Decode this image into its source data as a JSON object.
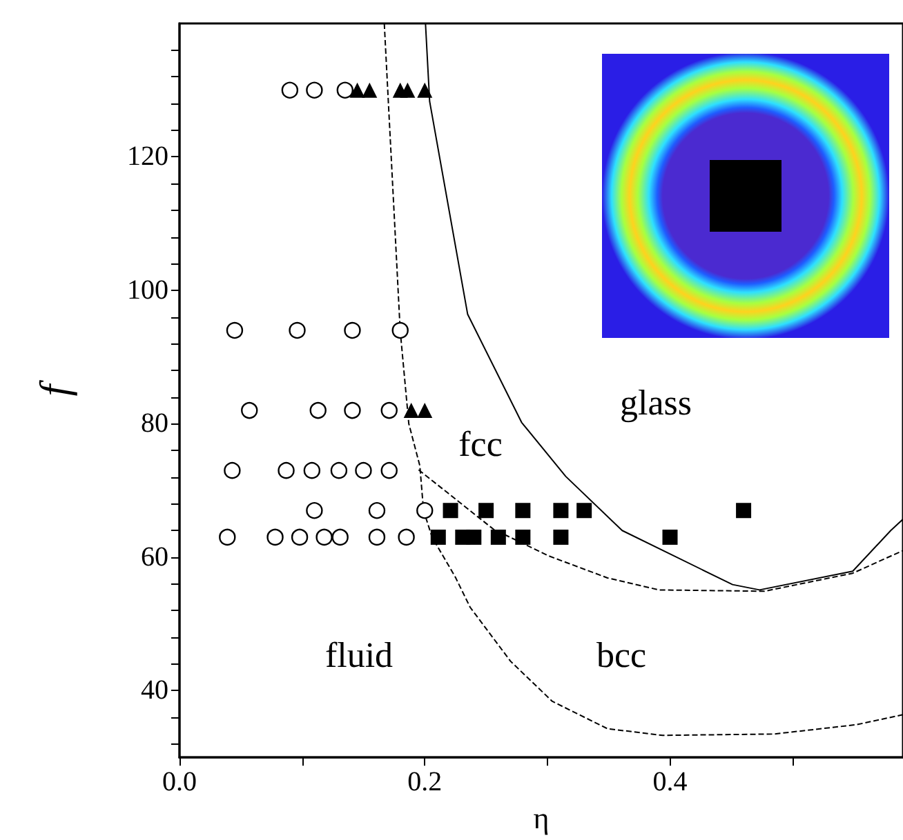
{
  "chart_data": {
    "type": "scatter",
    "xlabel": "η",
    "ylabel": "f",
    "xlim": [
      0,
      0.59
    ],
    "ylim": [
      30,
      140
    ],
    "xticks": [
      {
        "value": 0,
        "label": "0.0"
      },
      {
        "value": 0.1,
        "label": null
      },
      {
        "value": 0.2,
        "label": "0.2"
      },
      {
        "value": 0.3,
        "label": null
      },
      {
        "value": 0.4,
        "label": "0.4"
      },
      {
        "value": 0.5,
        "label": null
      }
    ],
    "yticks": [
      {
        "value": 32,
        "label": null
      },
      {
        "value": 36,
        "label": null
      },
      40,
      {
        "value": 44,
        "label": null
      },
      {
        "value": 48,
        "label": null
      },
      {
        "value": 52,
        "label": null
      },
      {
        "value": 56,
        "label": null
      },
      60,
      {
        "value": 64,
        "label": null
      },
      {
        "value": 68,
        "label": null
      },
      {
        "value": 72,
        "label": null
      },
      {
        "value": 76,
        "label": null
      },
      80,
      {
        "value": 84,
        "label": null
      },
      {
        "value": 88,
        "label": null
      },
      {
        "value": 92,
        "label": null
      },
      {
        "value": 96,
        "label": null
      },
      100,
      {
        "value": 104,
        "label": null
      },
      {
        "value": 108,
        "label": null
      },
      {
        "value": 112,
        "label": null
      },
      {
        "value": 116,
        "label": null
      },
      120,
      {
        "value": 124,
        "label": null
      },
      {
        "value": 128,
        "label": null
      },
      {
        "value": 132,
        "label": null
      },
      {
        "value": 136,
        "label": null
      }
    ],
    "grid": false,
    "series": [
      {
        "marker": "circle",
        "color": "#000000",
        "x": [
          0.09,
          0.11,
          0.135,
          0.045,
          0.096,
          0.141,
          0.18,
          0.057,
          0.113,
          0.141,
          0.171,
          0.043,
          0.087,
          0.108,
          0.13,
          0.15,
          0.171,
          0.11,
          0.161,
          0.2,
          0.039,
          0.078,
          0.098,
          0.118,
          0.131,
          0.161,
          0.185
        ],
        "values": [
          130,
          130,
          130,
          94,
          94,
          94,
          94,
          82,
          82,
          82,
          82,
          73,
          73,
          73,
          73,
          73,
          73,
          67,
          67,
          67,
          63,
          63,
          63,
          63,
          63,
          63,
          63
        ]
      },
      {
        "marker": "triangle",
        "color": "#000000",
        "x": [
          0.145,
          0.155,
          0.18,
          0.186,
          0.2,
          0.189,
          0.2
        ],
        "values": [
          130,
          130,
          130,
          130,
          130,
          82,
          82
        ]
      },
      {
        "marker": "square",
        "color": "#000000",
        "x": [
          0.221,
          0.25,
          0.28,
          0.311,
          0.33,
          0.46,
          0.211,
          0.231,
          0.24,
          0.26,
          0.28,
          0.311,
          0.4
        ],
        "values": [
          67,
          67,
          67,
          67,
          67,
          67,
          63,
          63,
          63,
          63,
          63,
          63,
          63
        ]
      },
      {
        "type": "line",
        "line_style": "solid",
        "marker": "none",
        "color": "#000000",
        "x": [
          0.2006,
          0.204,
          0.235,
          0.279,
          0.315,
          0.361,
          0.451,
          0.473,
          0.549,
          0.58,
          0.59
        ],
        "values": [
          140,
          128.3,
          96.4,
          80.2,
          72.1,
          64,
          55.9,
          55.1,
          57.9,
          64,
          65.7
        ]
      },
      {
        "type": "line",
        "line_style": "dashed",
        "marker": "none",
        "color": "#000000",
        "x": [
          0.167,
          0.18,
          0.187,
          0.196,
          0.199,
          0.206,
          0.225,
          0.237,
          0.27,
          0.304,
          0.349,
          0.394,
          0.485,
          0.552,
          0.59
        ],
        "values": [
          140,
          93.9,
          80,
          73.7,
          67,
          63,
          57,
          52.5,
          44.4,
          38.4,
          34.3,
          33.3,
          33.5,
          34.9,
          36.4
        ]
      },
      {
        "type": "line",
        "line_style": "dashed",
        "marker": "none",
        "color": "#000000",
        "x": [
          0.195,
          0.256,
          0.301,
          0.349,
          0.391,
          0.477,
          0.549,
          0.59
        ],
        "values": [
          73.1,
          64.2,
          60.2,
          56.9,
          55.1,
          54.9,
          57.6,
          61
        ]
      }
    ],
    "annotations": [
      "fluid",
      "fcc",
      "glass",
      "bcc"
    ]
  }
}
